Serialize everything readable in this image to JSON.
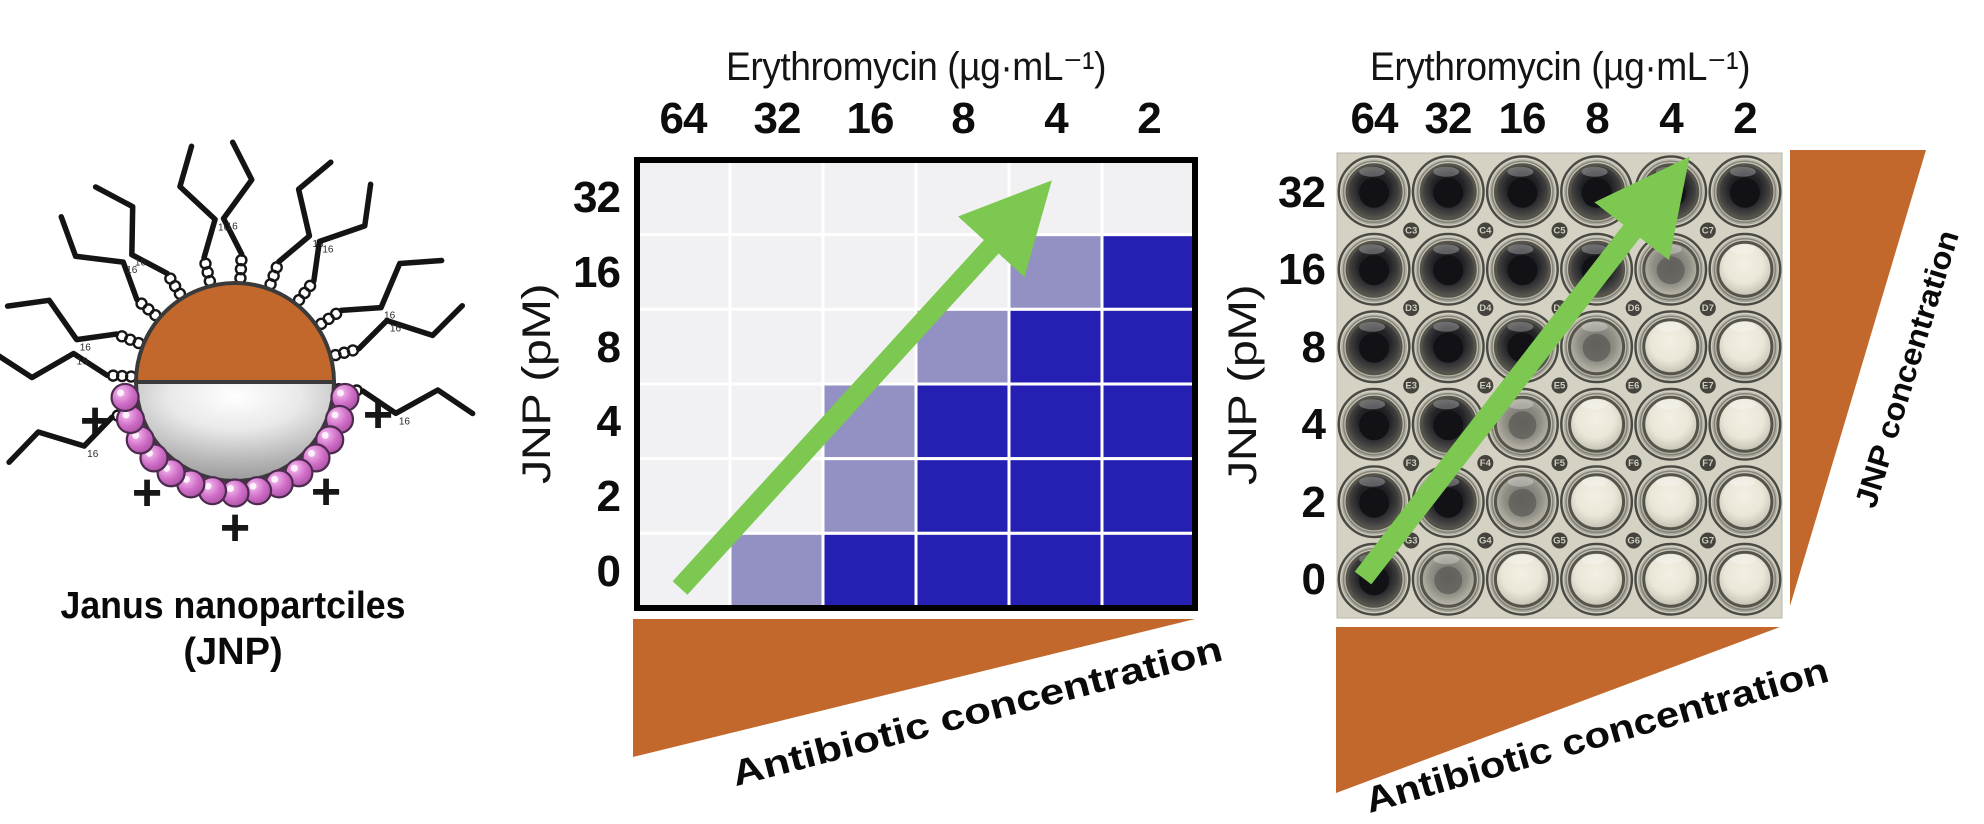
{
  "jnp_panel": {
    "caption": "Janus nanopartciles",
    "caption2": "(JNP)",
    "plus_symbol": "+",
    "chain_label": "16",
    "num_chains": 12,
    "num_beads": 15,
    "colors": {
      "top_hemisphere": "#C2682C",
      "bottom_hemisphere_edge": "#8C8C8C",
      "bead": "#C55CBC",
      "outline": "#3A3A3A"
    }
  },
  "heatmap_panel": {
    "x_axis_title": "Erythromycin (µg·mL⁻¹)",
    "x_ticks": [
      "64",
      "32",
      "16",
      "8",
      "4",
      "2"
    ],
    "y_axis_title": "JNP (pM)",
    "y_ticks": [
      "32",
      "16",
      "8",
      "4",
      "2",
      "0"
    ],
    "cells": [
      [
        "g",
        "g",
        "g",
        "g",
        "g",
        "g"
      ],
      [
        "g",
        "g",
        "g",
        "g",
        "p",
        "b"
      ],
      [
        "g",
        "g",
        "g",
        "p",
        "b",
        "b"
      ],
      [
        "g",
        "g",
        "p",
        "b",
        "b",
        "b"
      ],
      [
        "g",
        "g",
        "p",
        "b",
        "b",
        "b"
      ],
      [
        "g",
        "p",
        "b",
        "b",
        "b",
        "b"
      ]
    ],
    "cell_colors": {
      "g": "#F1F1F4",
      "p": "#9390C4",
      "b": "#2620B2"
    },
    "gridline_color": "#FFFFFF",
    "border_color": "#000000",
    "triangle_label": "Antibiotic concentration"
  },
  "plate_panel": {
    "x_axis_title": "Erythromycin (µg·mL⁻¹)",
    "x_ticks": [
      "64",
      "32",
      "16",
      "8",
      "4",
      "2"
    ],
    "y_axis_title": "JNP (pM)",
    "y_ticks": [
      "32",
      "16",
      "8",
      "4",
      "2",
      "0"
    ],
    "wells": [
      [
        "dark",
        "dark",
        "dark",
        "dark",
        "dark",
        "dark"
      ],
      [
        "dark",
        "dark",
        "dark",
        "dark",
        "hazy",
        "clear"
      ],
      [
        "dark",
        "dark",
        "dark",
        "hazy",
        "clear",
        "clear"
      ],
      [
        "dark",
        "dark",
        "hazy",
        "clear",
        "clear",
        "clear"
      ],
      [
        "dark",
        "dark",
        "hazy",
        "clear",
        "clear",
        "clear"
      ],
      [
        "dark",
        "hazy",
        "clear",
        "clear",
        "clear",
        "clear"
      ]
    ],
    "gap_labels": [
      [
        "C3",
        "C4",
        "C5",
        "C6",
        "C7"
      ],
      [
        "D3",
        "D4",
        "D5",
        "D6",
        "D7"
      ],
      [
        "E3",
        "E4",
        "E5",
        "E6",
        "E7"
      ],
      [
        "F3",
        "F4",
        "F5",
        "F6",
        "F7"
      ],
      [
        "G3",
        "G4",
        "G5",
        "G6",
        "G7"
      ]
    ],
    "triangle_label": "Antibiotic concentration",
    "side_triangle_label": "JNP concentration"
  },
  "accents": {
    "arrow_color": "#7CC850",
    "triangle_color": "#C2682C"
  },
  "chart_data": {
    "type": "heatmap",
    "x_label": "Erythromycin (µg·mL⁻¹)",
    "x_categories": [
      "64",
      "32",
      "16",
      "8",
      "4",
      "2"
    ],
    "y_label": "JNP (pM)",
    "y_categories": [
      "32",
      "16",
      "8",
      "4",
      "2",
      "0"
    ],
    "values": [
      [
        0,
        0,
        0,
        0,
        0,
        0
      ],
      [
        0,
        0,
        0,
        0,
        1,
        2
      ],
      [
        0,
        0,
        0,
        1,
        2,
        2
      ],
      [
        0,
        0,
        1,
        2,
        2,
        2
      ],
      [
        0,
        0,
        1,
        2,
        2,
        2
      ],
      [
        0,
        1,
        2,
        2,
        2,
        2
      ]
    ],
    "value_colors": {
      "0": "#F1F1F4",
      "1": "#9390C4",
      "2": "#2620B2"
    },
    "grid": true,
    "legend_position": "none"
  }
}
